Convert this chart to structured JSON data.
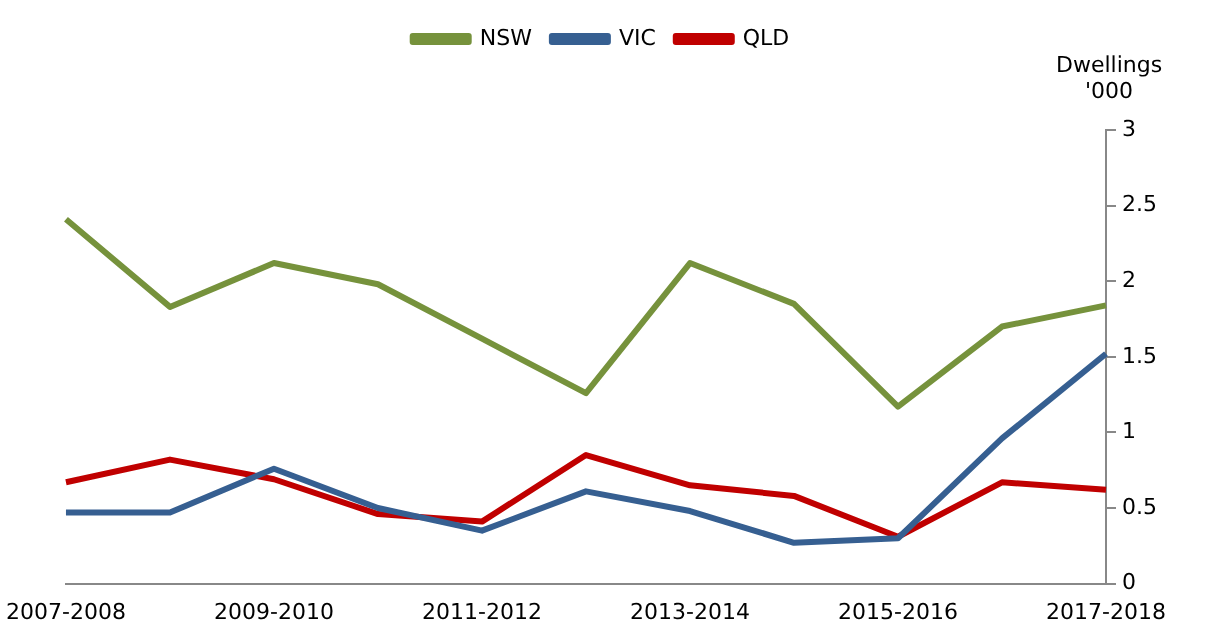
{
  "chart_data": {
    "type": "line",
    "ylabel": "Dwellings\n'000",
    "categories": [
      "2007-2008",
      null,
      "2009-2010",
      null,
      "2011-2012",
      null,
      "2013-2014",
      null,
      "2015-2016",
      null,
      "2017-2018"
    ],
    "series": [
      {
        "name": "NSW",
        "color": "#76923c",
        "values": [
          2.41,
          1.83,
          2.12,
          1.98,
          1.62,
          1.26,
          2.12,
          1.85,
          1.17,
          1.7,
          1.84
        ]
      },
      {
        "name": "VIC",
        "color": "#365f91",
        "values": [
          0.47,
          0.47,
          0.76,
          0.5,
          0.35,
          0.61,
          0.48,
          0.27,
          0.3,
          0.96,
          1.52
        ]
      },
      {
        "name": "QLD",
        "color": "#c00000",
        "values": [
          0.67,
          0.82,
          0.69,
          0.46,
          0.41,
          0.85,
          0.65,
          0.58,
          0.31,
          0.67,
          0.62
        ]
      }
    ],
    "ylim": [
      0,
      3
    ],
    "yticks": [
      0,
      0.5,
      1,
      1.5,
      2,
      2.5,
      3
    ],
    "grid": false,
    "legend": "top",
    "marker": "none",
    "line_style": "solid"
  }
}
